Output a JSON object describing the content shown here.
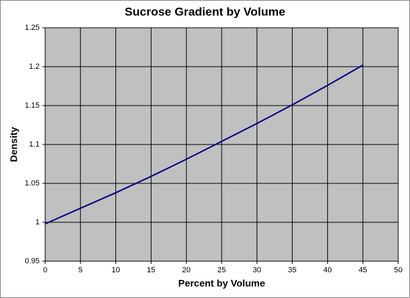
{
  "chart_data": {
    "type": "line",
    "title": "Sucrose Gradient by Volume",
    "x_label": "Percent by Volume",
    "y_label": "Density",
    "x": [
      0,
      5,
      10,
      15,
      20,
      25,
      30,
      35,
      40,
      45
    ],
    "values": [
      0.998,
      1.018,
      1.038,
      1.059,
      1.081,
      1.104,
      1.127,
      1.151,
      1.176,
      1.202
    ],
    "color": "#000080",
    "xlim": [
      0,
      50
    ],
    "xticks": [
      0,
      5,
      10,
      15,
      20,
      25,
      30,
      35,
      40,
      45,
      50
    ],
    "ylim": [
      0.95,
      1.25
    ],
    "yticks": [
      0.95,
      1,
      1.05,
      1.1,
      1.15,
      1.2,
      1.25
    ],
    "grid": true,
    "plot_background": "#c0c0c0"
  }
}
